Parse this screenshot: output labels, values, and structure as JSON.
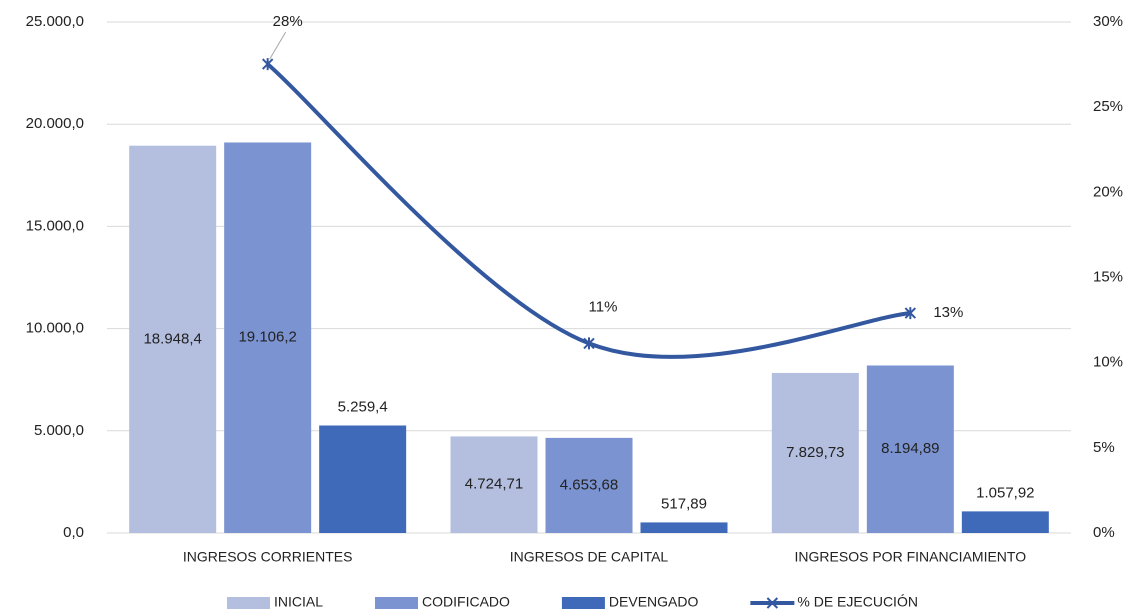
{
  "chart_data": {
    "type": "bar_line",
    "categories": [
      "INGRESOS CORRIENTES",
      "INGRESOS DE CAPITAL",
      "INGRESOS POR FINANCIAMIENTO"
    ],
    "series": [
      {
        "name": "INICIAL",
        "color": "#b4bfe0",
        "type": "bar",
        "label_position": "inside",
        "values": [
          18948.4,
          4724.71,
          7829.73
        ],
        "value_labels": [
          "18.948,4",
          "4.724,71",
          "7.829,73"
        ]
      },
      {
        "name": "CODIFICADO",
        "color": "#7b93d1",
        "type": "bar",
        "label_position": "inside",
        "values": [
          19106.2,
          4653.68,
          8194.89
        ],
        "value_labels": [
          "19.106,2",
          "4.653,68",
          "8.194,89"
        ]
      },
      {
        "name": "DEVENGADO",
        "color": "#3f69b9",
        "type": "bar",
        "label_position": "outside",
        "values": [
          5259.4,
          517.89,
          1057.92
        ],
        "value_labels": [
          "5.259,4",
          "517,89",
          "1.057,92"
        ]
      },
      {
        "name": "% DE EJECUCIÓN",
        "color": "#3358a0",
        "type": "line",
        "axis": "y2",
        "smooth": true,
        "values": [
          27.53,
          11.13,
          12.91
        ],
        "value_labels": [
          "28%",
          "11%",
          "13%"
        ]
      }
    ],
    "ylim": [
      0,
      25000
    ],
    "yticks": [
      {
        "value": 0,
        "label": "0,0"
      },
      {
        "value": 5000,
        "label": "5.000,0"
      },
      {
        "value": 10000,
        "label": "10.000,0"
      },
      {
        "value": 15000,
        "label": "15.000,0"
      },
      {
        "value": 20000,
        "label": "20.000,0"
      },
      {
        "value": 25000,
        "label": "25.000,0"
      }
    ],
    "y2lim": [
      0,
      30
    ],
    "y2ticks": [
      {
        "value": 0,
        "label": "0%"
      },
      {
        "value": 5,
        "label": "5%"
      },
      {
        "value": 10,
        "label": "10%"
      },
      {
        "value": 15,
        "label": "15%"
      },
      {
        "value": 20,
        "label": "20%"
      },
      {
        "value": 25,
        "label": "25%"
      },
      {
        "value": 30,
        "label": "30%"
      }
    ],
    "grid": true,
    "legend": "bottom"
  }
}
